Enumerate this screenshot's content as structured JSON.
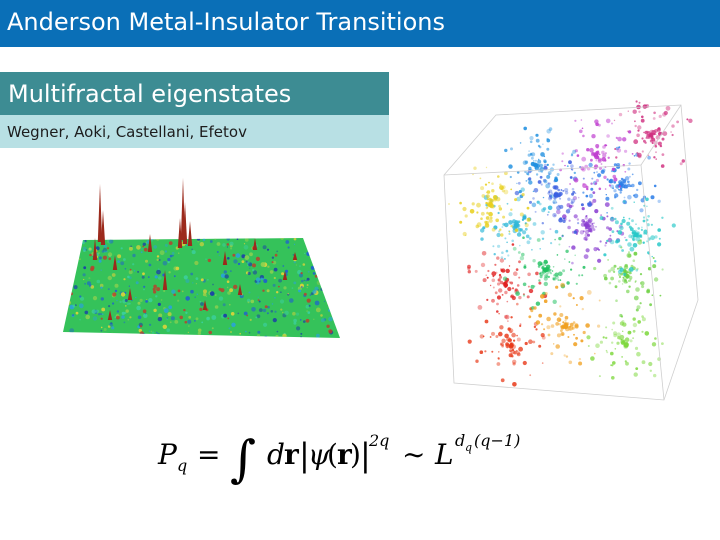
{
  "slide": {
    "title": "Anderson Metal-Insulator Transitions",
    "subtitle": "Multifractal eigenstates",
    "authors": "Wegner, Aoki, Castellani, Efetov"
  },
  "formula": {
    "lhs": "P",
    "lhs_sub": "q",
    "equals": "=",
    "integral": "∫",
    "d": "d",
    "r_bold": "r",
    "bar_open": "|",
    "psi": "ψ",
    "paren_open": "(",
    "r_bold_2": "r",
    "paren_close": ")",
    "bar_close": "|",
    "exp_2q": "2q",
    "sim": "∼",
    "L": "L",
    "exp_d": "d",
    "exp_d_sub": "q",
    "exp_rest": "(q−1)"
  },
  "colors": {
    "title_bar": "#0a6fb7",
    "subtitle_box": "#3d8c93",
    "author_box": "#b8e0e4"
  }
}
